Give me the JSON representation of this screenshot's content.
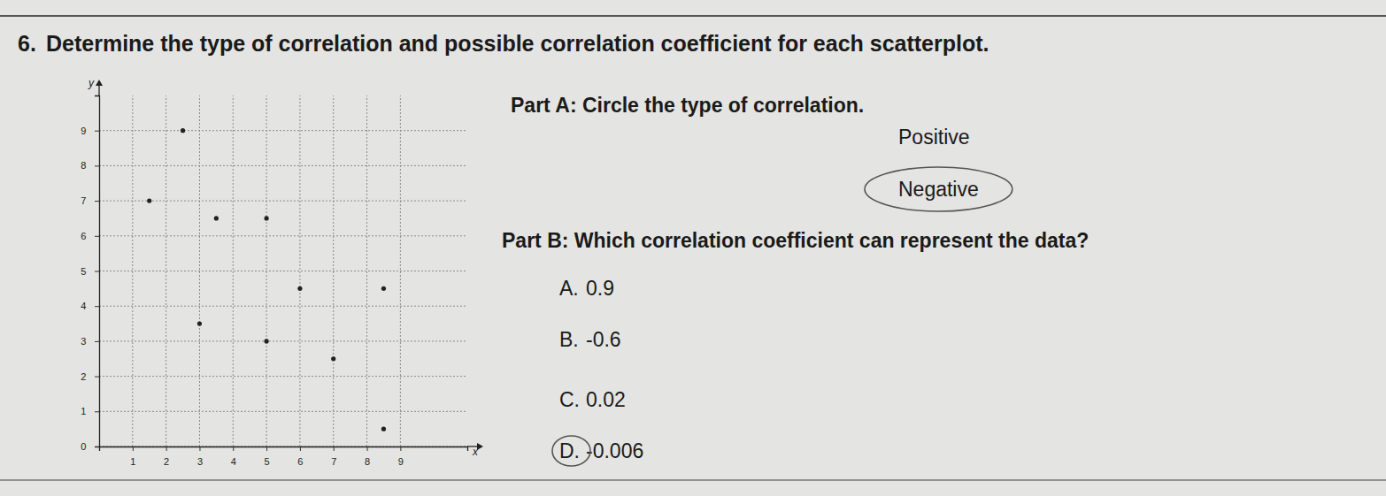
{
  "header": {
    "number": "6.",
    "title": "Determine the type of correlation and possible correlation coefficient for each scatterplot."
  },
  "part_a": {
    "prompt": "Part A: Circle the type of correlation.",
    "options": [
      "Positive",
      "Negative"
    ],
    "circled": "Negative"
  },
  "part_b": {
    "prompt": "Part B: Which correlation coefficient can represent the data?",
    "options": [
      {
        "letter": "A.",
        "text": "0.9"
      },
      {
        "letter": "B.",
        "text": "-0.6"
      },
      {
        "letter": "C.",
        "text": "0.02"
      },
      {
        "letter": "D.",
        "text": "-0.006"
      }
    ],
    "circled": "D."
  },
  "chart_data": {
    "type": "scatter",
    "x_label": "x",
    "y_label": "y",
    "x": [
      2.5,
      1.5,
      3.5,
      5,
      6,
      8.5,
      3,
      5,
      7,
      8.5
    ],
    "values": [
      9,
      7,
      6.5,
      6.5,
      4.5,
      4.5,
      3.5,
      3,
      2.5,
      0.5
    ],
    "color": "#222222",
    "marker": "circle",
    "xlim": [
      0,
      11
    ],
    "ylim": [
      0,
      10
    ],
    "xticks": [
      1,
      2,
      3,
      4,
      5,
      6,
      7,
      8,
      9
    ],
    "yticks": [
      0,
      1,
      2,
      3,
      4,
      5,
      6,
      7,
      8,
      9
    ],
    "grid": true
  }
}
